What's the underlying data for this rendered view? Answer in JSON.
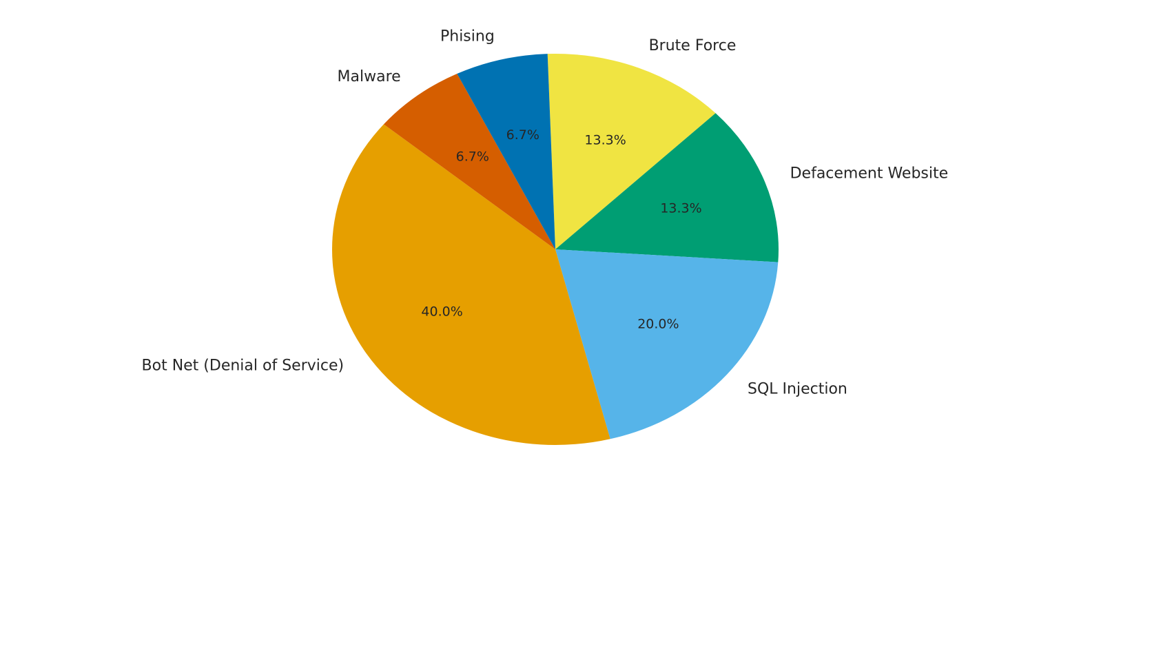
{
  "chart_data": {
    "type": "pie",
    "title": "",
    "slices": [
      {
        "label": "Brute Force",
        "value": 13.3,
        "pct_label": "13.3%",
        "color": "#F0E442"
      },
      {
        "label": "Defacement Website",
        "value": 13.3,
        "pct_label": "13.3%",
        "color": "#009E73"
      },
      {
        "label": "SQL Injection",
        "value": 20.0,
        "pct_label": "20.0%",
        "color": "#56B4E9"
      },
      {
        "label": "Bot Net (Denial of Service)",
        "value": 40.0,
        "pct_label": "40.0%",
        "color": "#E69F00"
      },
      {
        "label": "Malware",
        "value": 6.7,
        "pct_label": "6.7%",
        "color": "#D55E00"
      },
      {
        "label": "Phising",
        "value": 6.7,
        "pct_label": "6.7%",
        "color": "#0072B2"
      }
    ]
  }
}
